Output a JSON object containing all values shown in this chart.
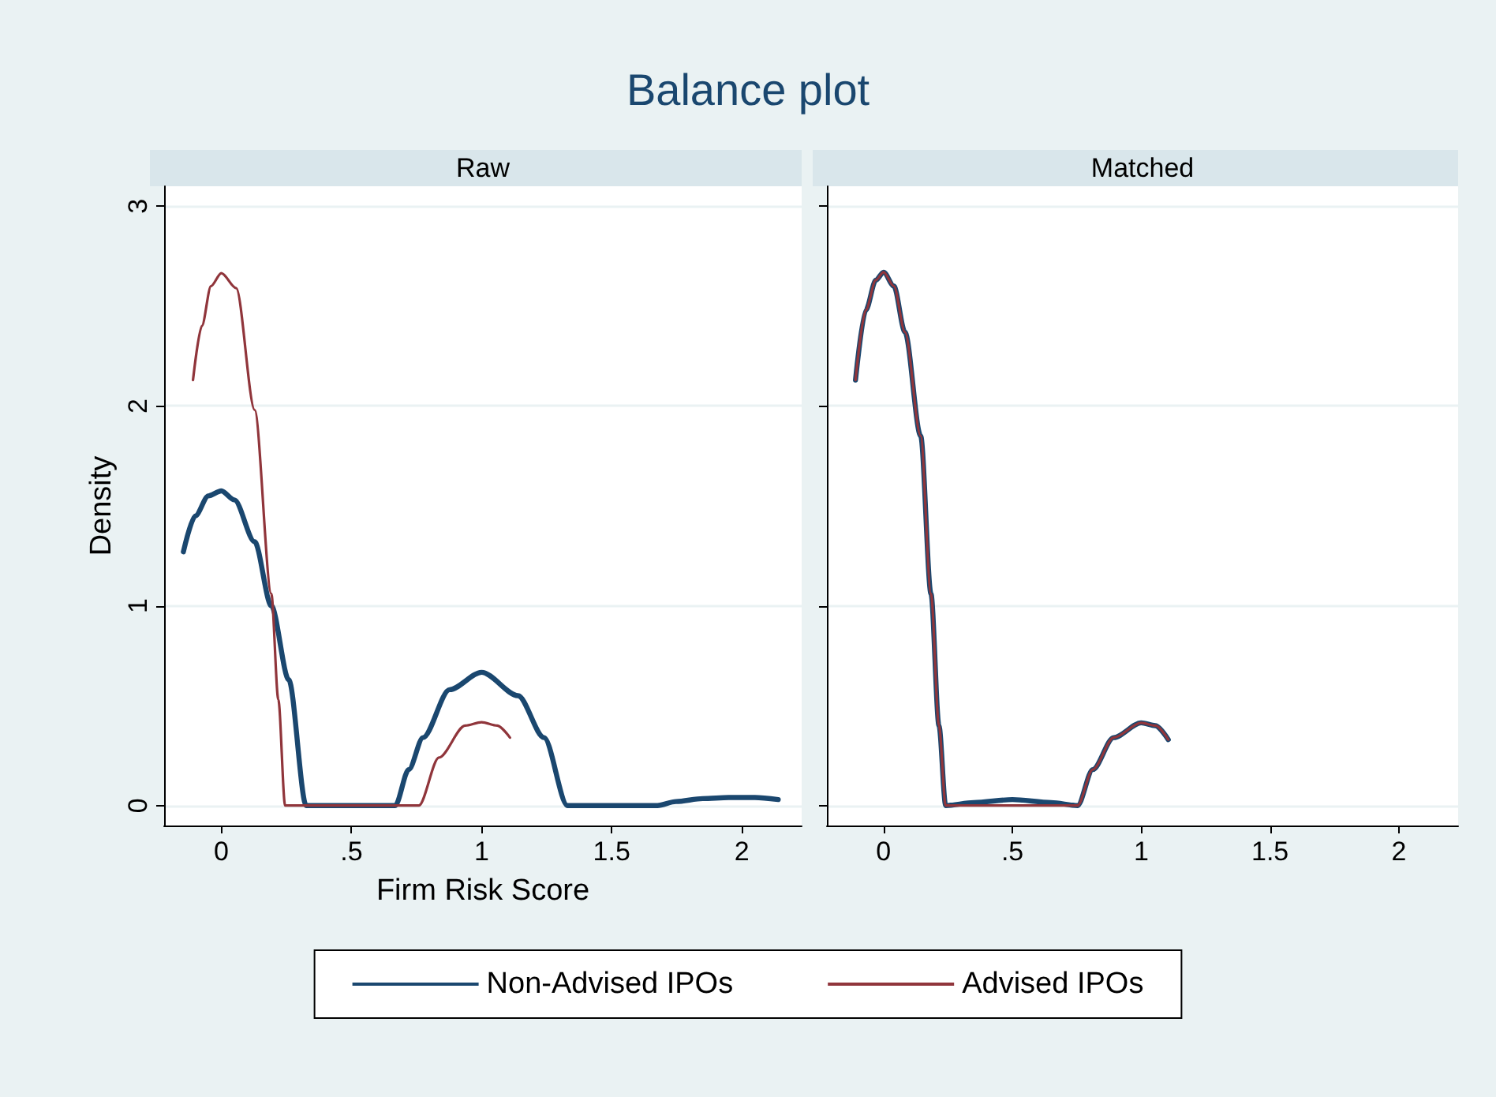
{
  "chart_data": [
    {
      "type": "line",
      "title": "Balance plot",
      "subtitle": "Raw",
      "xlabel": "Firm Risk Score",
      "ylabel": "Density",
      "xlim": [
        -0.22,
        2.23
      ],
      "ylim": [
        -0.1,
        3.1
      ],
      "xticks": [
        0,
        {
          "value": 0.5,
          "label": ".5"
        },
        1,
        1.5,
        2
      ],
      "yticks": [
        0,
        1,
        2,
        3
      ],
      "grid": "y",
      "legend": "bottom",
      "marker": "none",
      "line_style": "solid",
      "series": [
        {
          "name": "Non-Advised IPOs",
          "color": "#1a476f",
          "x": [
            -0.146,
            -0.1,
            -0.05,
            0,
            0.05,
            0.128,
            0.192,
            0.259,
            0.326,
            0.668,
            0.72,
            0.775,
            0.877,
            1,
            1.14,
            1.24,
            1.33,
            1.676,
            1.747,
            1.85,
            1.95,
            2.05,
            2.14
          ],
          "values": [
            1.27,
            1.45,
            1.55,
            1.575,
            1.53,
            1.32,
            1.0,
            0.63,
            0,
            0,
            0.18,
            0.34,
            0.58,
            0.667,
            0.55,
            0.34,
            0,
            0,
            0.02,
            0.035,
            0.04,
            0.04,
            0.03
          ]
        },
        {
          "name": "Advised IPOs",
          "color": "#90353b",
          "x": [
            -0.109,
            -0.075,
            -0.04,
            0,
            0.057,
            0.128,
            0.192,
            0.219,
            0.245,
            0.759,
            0.836,
            0.937,
            1,
            1.06,
            1.109
          ],
          "values": [
            2.13,
            2.4,
            2.6,
            2.665,
            2.59,
            1.98,
            1.06,
            0.53,
            0,
            0,
            0.24,
            0.4,
            0.417,
            0.4,
            0.34
          ]
        }
      ]
    },
    {
      "type": "line",
      "subtitle": "Matched",
      "xlim": [
        -0.22,
        2.23
      ],
      "ylim": [
        -0.1,
        3.1
      ],
      "xticks": [
        0,
        {
          "value": 0.5,
          "label": ".5"
        },
        1,
        1.5,
        2
      ],
      "yticks": [
        0,
        1,
        2,
        3
      ],
      "grid": "y",
      "tick_labels": "x",
      "marker": "none",
      "line_style": "solid",
      "series": [
        {
          "color": "#1a476f",
          "x": [
            -0.109,
            -0.069,
            -0.03,
            0,
            0.04,
            0.083,
            0.144,
            0.184,
            0.215,
            0.241,
            0.35,
            0.5,
            0.65,
            0.753,
            0.812,
            0.893,
            1,
            1.055,
            1.105
          ],
          "values": [
            2.13,
            2.48,
            2.63,
            2.67,
            2.6,
            2.37,
            1.85,
            1.06,
            0.4,
            0,
            0.015,
            0.03,
            0.015,
            0,
            0.18,
            0.34,
            0.414,
            0.4,
            0.33
          ]
        },
        {
          "color": "#90353b",
          "x": [
            -0.109,
            -0.069,
            -0.03,
            0,
            0.04,
            0.083,
            0.144,
            0.184,
            0.215,
            0.241,
            0.753,
            0.812,
            0.893,
            1,
            1.055,
            1.105
          ],
          "values": [
            2.13,
            2.48,
            2.63,
            2.67,
            2.6,
            2.37,
            1.85,
            1.06,
            0.4,
            0,
            0,
            0.18,
            0.34,
            0.414,
            0.4,
            0.33
          ]
        }
      ]
    }
  ]
}
